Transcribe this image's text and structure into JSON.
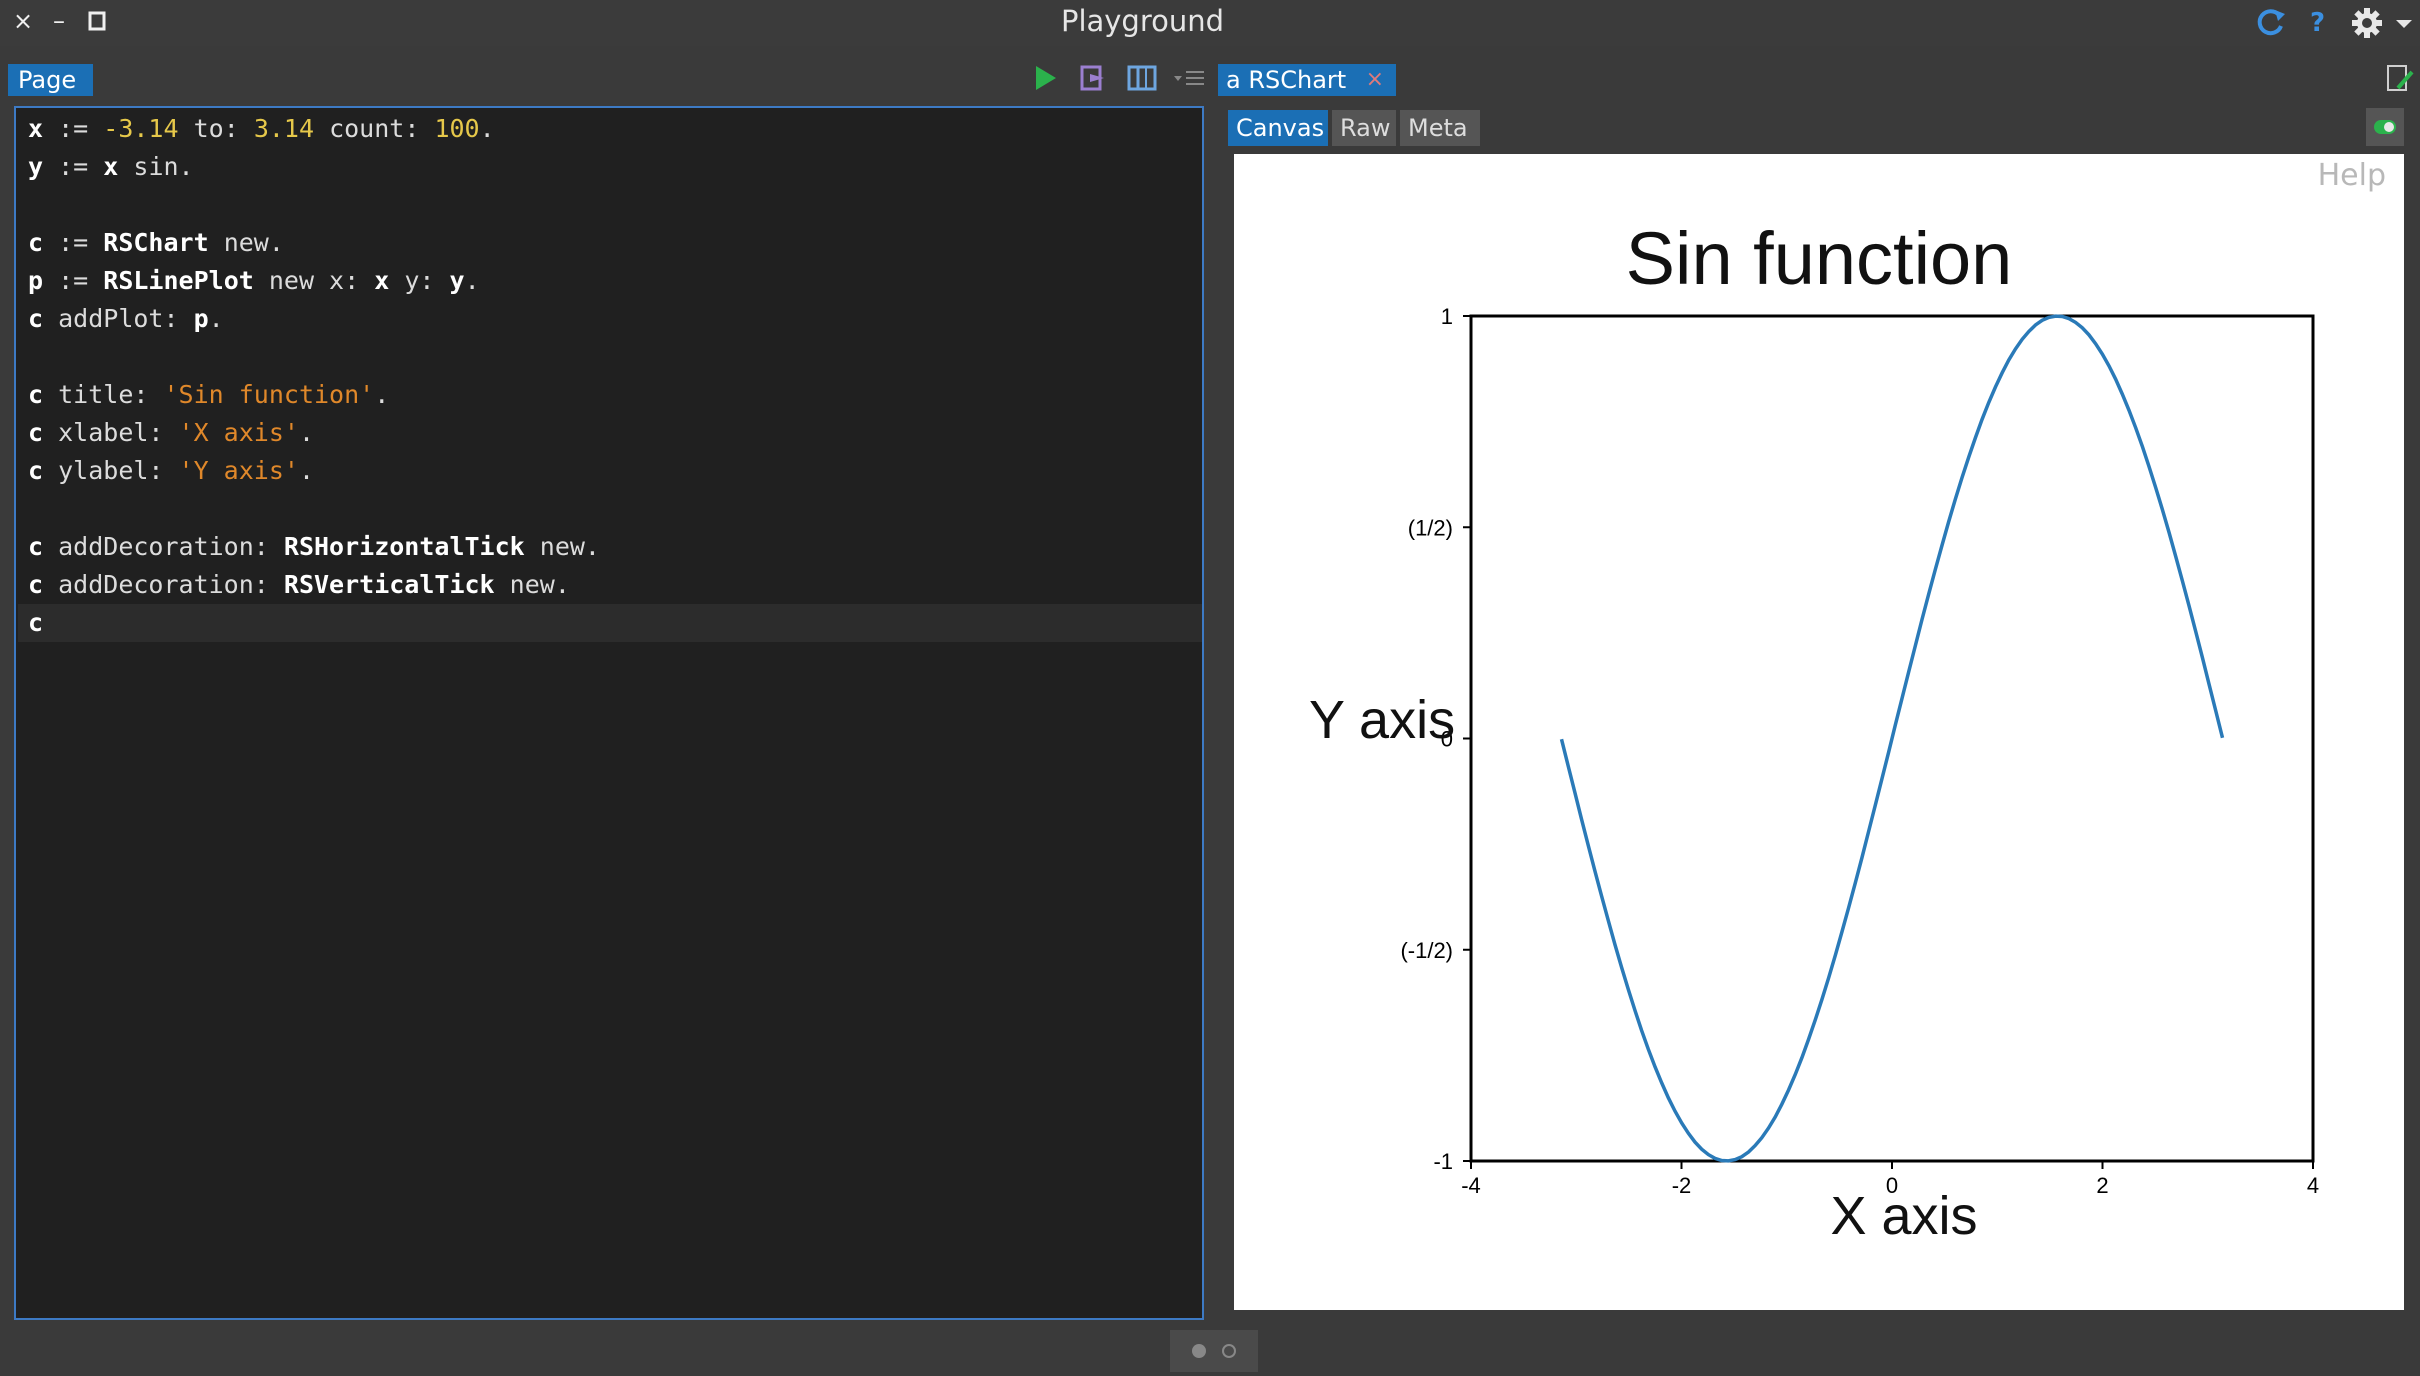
{
  "window": {
    "title": "Playground",
    "close_glyph": "×",
    "minimize_glyph": "–",
    "maximize_glyph": "□",
    "icons": [
      "refresh-icon",
      "help-icon",
      "settings-icon",
      "chevron-down-icon"
    ],
    "help_glyph": "?"
  },
  "left_pane": {
    "tab_label": "Page",
    "toolbar_icons": [
      "run-icon",
      "do-it-icon",
      "inspect-icon",
      "menu-icon"
    ],
    "code_lines": [
      [
        [
          "var",
          "x"
        ],
        [
          "kw",
          " := "
        ],
        [
          "num",
          "-3.14"
        ],
        [
          "kw",
          " to: "
        ],
        [
          "num",
          "3.14"
        ],
        [
          "kw",
          " count: "
        ],
        [
          "num",
          "100"
        ],
        [
          "kw",
          "."
        ]
      ],
      [
        [
          "var",
          "y"
        ],
        [
          "kw",
          " := "
        ],
        [
          "var",
          "x"
        ],
        [
          "kw",
          " sin."
        ]
      ],
      [],
      [
        [
          "var",
          "c"
        ],
        [
          "kw",
          " := "
        ],
        [
          "cls",
          "RSChart"
        ],
        [
          "kw",
          " new."
        ]
      ],
      [
        [
          "var",
          "p"
        ],
        [
          "kw",
          " := "
        ],
        [
          "cls",
          "RSLinePlot"
        ],
        [
          "kw",
          " new x: "
        ],
        [
          "var",
          "x"
        ],
        [
          "kw",
          " y: "
        ],
        [
          "var",
          "y"
        ],
        [
          "kw",
          "."
        ]
      ],
      [
        [
          "var",
          "c"
        ],
        [
          "kw",
          " addPlot: "
        ],
        [
          "var",
          "p"
        ],
        [
          "kw",
          "."
        ]
      ],
      [],
      [
        [
          "var",
          "c"
        ],
        [
          "kw",
          " title: "
        ],
        [
          "str",
          "'Sin function'"
        ],
        [
          "kw",
          "."
        ]
      ],
      [
        [
          "var",
          "c"
        ],
        [
          "kw",
          " xlabel: "
        ],
        [
          "str",
          "'X axis'"
        ],
        [
          "kw",
          "."
        ]
      ],
      [
        [
          "var",
          "c"
        ],
        [
          "kw",
          " ylabel: "
        ],
        [
          "str",
          "'Y axis'"
        ],
        [
          "kw",
          "."
        ]
      ],
      [],
      [
        [
          "var",
          "c"
        ],
        [
          "kw",
          " addDecoration: "
        ],
        [
          "cls",
          "RSHorizontalTick"
        ],
        [
          "kw",
          " new."
        ]
      ],
      [
        [
          "var",
          "c"
        ],
        [
          "kw",
          " addDecoration: "
        ],
        [
          "cls",
          "RSVerticalTick"
        ],
        [
          "kw",
          " new."
        ]
      ],
      [
        [
          "var",
          "c"
        ]
      ]
    ],
    "current_line": 13
  },
  "right_pane": {
    "tab_label": "a RSChart",
    "tab_close_glyph": "×",
    "subtabs": [
      "Canvas",
      "Raw",
      "Meta"
    ],
    "active_subtab": 0,
    "help_label": "Help",
    "icons": [
      "edit-icon",
      "toggle-icon"
    ]
  },
  "chart_data": {
    "type": "line",
    "title": "Sin function",
    "xlabel": "X axis",
    "ylabel": "Y axis",
    "xlim": [
      -4,
      4
    ],
    "ylim": [
      -1,
      1
    ],
    "x_ticks": [
      -4,
      -2,
      0,
      2,
      4
    ],
    "x_tick_labels": [
      "-4",
      "-2",
      "0",
      "2",
      "4"
    ],
    "y_ticks": [
      1,
      0.5,
      0,
      -0.5,
      -1
    ],
    "y_tick_labels": [
      "1",
      "(1/2)",
      "0",
      "(-1/2)",
      "-1"
    ],
    "line_color": "#2a7ab8",
    "series": [
      {
        "function": "sin",
        "x_start": -3.14,
        "x_end": 3.14,
        "count": 100
      }
    ]
  },
  "colors": {
    "accent": "#1b6fb5",
    "run_green": "#2bb24c",
    "string_orange": "#e0882a",
    "number_yellow": "#e6c84a"
  }
}
